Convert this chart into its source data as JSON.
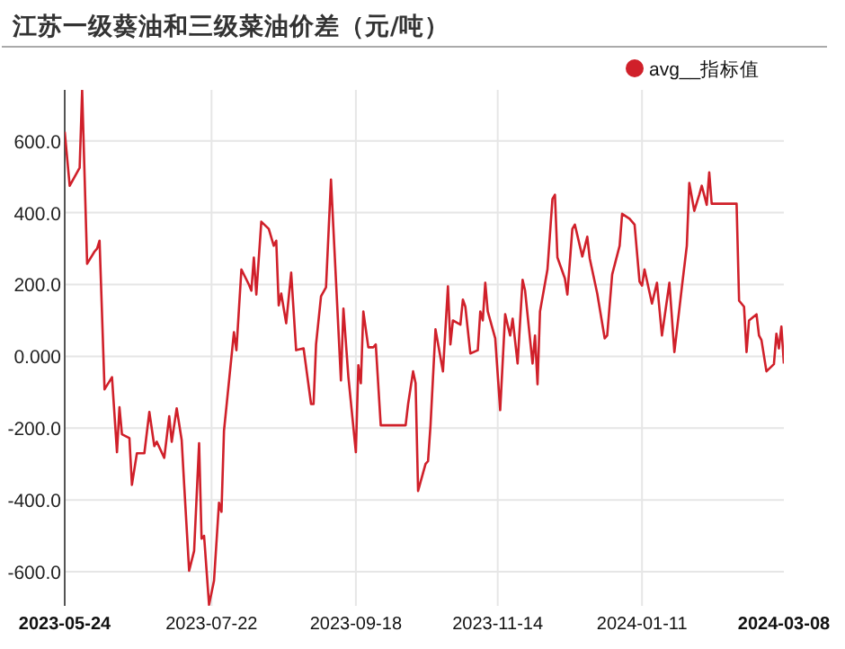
{
  "chart_data": {
    "type": "line",
    "title": "江苏一级葵油和三级菜油价差（元/吨）",
    "xlim": [
      "2023-05-24",
      "2024-03-08"
    ],
    "xticks": [
      "2023-05-24",
      "2023-07-22",
      "2023-09-18",
      "2023-11-14",
      "2024-01-11",
      "2024-03-08"
    ],
    "ylim": [
      -695,
      742
    ],
    "yticks": [
      {
        "value": -600,
        "label": "-600.0"
      },
      {
        "value": -400,
        "label": "-400.0"
      },
      {
        "value": -200,
        "label": "-200.0"
      },
      {
        "value": 0,
        "label": "0.000"
      },
      {
        "value": 200,
        "label": "200.0"
      },
      {
        "value": 400,
        "label": "400.0"
      },
      {
        "value": 600,
        "label": "600.0"
      }
    ],
    "grid": true,
    "legend": "top right",
    "series": [
      {
        "name": "avg__指标值",
        "color": "#d0202a",
        "x": [
          "2023-05-24",
          "2023-05-26",
          "2023-05-30",
          "2023-05-31",
          "2023-06-02",
          "2023-06-05",
          "2023-06-06",
          "2023-06-07",
          "2023-06-09",
          "2023-06-12",
          "2023-06-14",
          "2023-06-15",
          "2023-06-16",
          "2023-06-19",
          "2023-06-20",
          "2023-06-22",
          "2023-06-25",
          "2023-06-27",
          "2023-06-29",
          "2023-06-30",
          "2023-07-03",
          "2023-07-05",
          "2023-07-06",
          "2023-07-08",
          "2023-07-10",
          "2023-07-11",
          "2023-07-13",
          "2023-07-15",
          "2023-07-17",
          "2023-07-18",
          "2023-07-19",
          "2023-07-21",
          "2023-07-23",
          "2023-07-25",
          "2023-07-26",
          "2023-07-27",
          "2023-07-31",
          "2023-08-01",
          "2023-08-03",
          "2023-08-06",
          "2023-08-07",
          "2023-08-08",
          "2023-08-09",
          "2023-08-11",
          "2023-08-14",
          "2023-08-16",
          "2023-08-17",
          "2023-08-18",
          "2023-08-19",
          "2023-08-21",
          "2023-08-23",
          "2023-08-25",
          "2023-08-28",
          "2023-08-31",
          "2023-09-01",
          "2023-09-02",
          "2023-09-04",
          "2023-09-06",
          "2023-09-08",
          "2023-09-12",
          "2023-09-13",
          "2023-09-15",
          "2023-09-18",
          "2023-09-19",
          "2023-09-20",
          "2023-09-21",
          "2023-09-23",
          "2023-09-25",
          "2023-09-26",
          "2023-09-28",
          "2023-10-08",
          "2023-10-09",
          "2023-10-11",
          "2023-10-12",
          "2023-10-13",
          "2023-10-16",
          "2023-10-17",
          "2023-10-18",
          "2023-10-20",
          "2023-10-23",
          "2023-10-25",
          "2023-10-26",
          "2023-10-27",
          "2023-10-30",
          "2023-10-31",
          "2023-11-01",
          "2023-11-03",
          "2023-11-06",
          "2023-11-07",
          "2023-11-08",
          "2023-11-09",
          "2023-11-10",
          "2023-11-13",
          "2023-11-15",
          "2023-11-17",
          "2023-11-19",
          "2023-11-20",
          "2023-11-22",
          "2023-11-24",
          "2023-11-25",
          "2023-11-28",
          "2023-11-29",
          "2023-11-30",
          "2023-12-01",
          "2023-12-04",
          "2023-12-06",
          "2023-12-07",
          "2023-12-08",
          "2023-12-11",
          "2023-12-12",
          "2023-12-14",
          "2023-12-15",
          "2023-12-18",
          "2023-12-20",
          "2023-12-21",
          "2023-12-24",
          "2023-12-27",
          "2023-12-28",
          "2023-12-30",
          "2024-01-02",
          "2024-01-03",
          "2024-01-06",
          "2024-01-08",
          "2024-01-10",
          "2024-01-11",
          "2024-01-12",
          "2024-01-15",
          "2024-01-17",
          "2024-01-19",
          "2024-01-22",
          "2024-01-24",
          "2024-01-27",
          "2024-01-29",
          "2024-01-30",
          "2024-02-01",
          "2024-02-03",
          "2024-02-04",
          "2024-02-06",
          "2024-02-07",
          "2024-02-08",
          "2024-02-18",
          "2024-02-19",
          "2024-02-21",
          "2024-02-22",
          "2024-02-23",
          "2024-02-26",
          "2024-02-27",
          "2024-02-28",
          "2024-03-01",
          "2024-03-04",
          "2024-03-05",
          "2024-03-06",
          "2024-03-07",
          "2024-03-08"
        ],
        "values": [
          625,
          475,
          525,
          740,
          258,
          292,
          300,
          322,
          -92,
          -58,
          -267,
          -142,
          -217,
          -228,
          -358,
          -270,
          -270,
          -155,
          -250,
          -238,
          -283,
          -167,
          -238,
          -145,
          -233,
          -358,
          -597,
          -542,
          -242,
          -508,
          -500,
          -692,
          -625,
          -408,
          -433,
          -208,
          67,
          17,
          242,
          200,
          183,
          275,
          172,
          375,
          355,
          308,
          322,
          142,
          175,
          92,
          233,
          17,
          22,
          -133,
          -133,
          33,
          167,
          192,
          492,
          -67,
          133,
          -58,
          -267,
          -25,
          -75,
          125,
          25,
          25,
          33,
          -192,
          -192,
          -133,
          -42,
          -75,
          -375,
          -300,
          -292,
          -192,
          75,
          -42,
          195,
          33,
          100,
          88,
          158,
          138,
          8,
          17,
          125,
          100,
          205,
          125,
          50,
          -150,
          117,
          58,
          105,
          -20,
          213,
          183,
          -20,
          58,
          -78,
          125,
          242,
          438,
          450,
          275,
          217,
          172,
          355,
          367,
          278,
          333,
          272,
          175,
          50,
          58,
          228,
          308,
          397,
          383,
          367,
          208,
          197,
          242,
          147,
          205,
          58,
          205,
          12,
          192,
          308,
          483,
          405,
          450,
          475,
          422,
          512,
          425,
          425,
          155,
          138,
          12,
          100,
          117,
          58,
          45,
          -42,
          -22,
          63,
          22,
          83,
          -20
        ]
      }
    ]
  }
}
